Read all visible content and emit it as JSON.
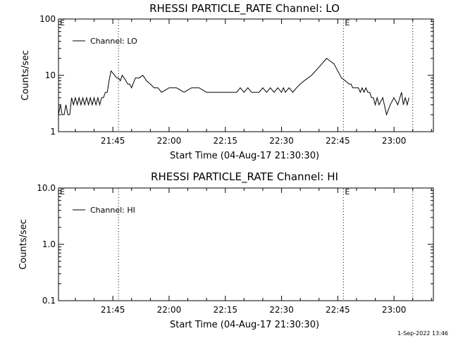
{
  "colors": {
    "background": "#ffffff",
    "foreground": "#000000"
  },
  "timestamp": "1-Sep-2022 13:46",
  "chart_data": [
    {
      "type": "line",
      "title": "RHESSI PARTICLE_RATE Channel: LO",
      "xlabel": "Start Time (04-Aug-17 21:30:30)",
      "ylabel": "Counts/sec",
      "y_scale": "log",
      "ylim": [
        1,
        100
      ],
      "y_ticks": [
        {
          "value": 1,
          "label": "1"
        },
        {
          "value": 10,
          "label": "10"
        },
        {
          "value": 100,
          "label": "100"
        }
      ],
      "xlim": [
        "21:30:30",
        "23:10:30"
      ],
      "x_ticks": [
        "21:45",
        "22:00",
        "22:15",
        "22:30",
        "22:45",
        "23:00"
      ],
      "eclipse_markers": [
        {
          "time": "21:46:30",
          "label": ""
        },
        {
          "time": "22:46:30",
          "label": "E"
        },
        {
          "time": "23:05:00",
          "label": ""
        }
      ],
      "corner_marks": [
        {
          "label": "E"
        }
      ],
      "legend": {
        "position": "top-left",
        "entries": [
          "Channel: LO"
        ]
      },
      "series": [
        {
          "name": "Channel: LO",
          "x": [
            "21:30:30",
            "21:31:00",
            "21:31:30",
            "21:32:00",
            "21:32:30",
            "21:33:00",
            "21:33:30",
            "21:34:00",
            "21:34:30",
            "21:35:00",
            "21:35:30",
            "21:36:00",
            "21:36:30",
            "21:37:00",
            "21:37:30",
            "21:38:00",
            "21:38:30",
            "21:39:00",
            "21:39:30",
            "21:40:00",
            "21:40:30",
            "21:41:00",
            "21:41:30",
            "21:42:00",
            "21:42:30",
            "21:43:00",
            "21:43:30",
            "21:44:00",
            "21:44:30",
            "21:45:00",
            "21:45:30",
            "21:46:00",
            "21:46:30",
            "21:47:00",
            "21:47:30",
            "21:48:00",
            "21:48:30",
            "21:49:00",
            "21:49:30",
            "21:50:00",
            "21:51:00",
            "21:52:00",
            "21:53:00",
            "21:54:00",
            "21:55:00",
            "21:56:00",
            "21:57:00",
            "21:58:00",
            "22:00:00",
            "22:02:00",
            "22:04:00",
            "22:06:00",
            "22:08:00",
            "22:10:00",
            "22:11:00",
            "22:12:00",
            "22:13:00",
            "22:14:00",
            "22:15:00",
            "22:16:00",
            "22:17:00",
            "22:18:00",
            "22:19:00",
            "22:20:00",
            "22:21:00",
            "22:22:00",
            "22:23:00",
            "22:24:00",
            "22:25:00",
            "22:26:00",
            "22:27:00",
            "22:28:00",
            "22:29:00",
            "22:30:00",
            "22:30:30",
            "22:31:00",
            "22:32:00",
            "22:33:00",
            "22:34:00",
            "22:35:00",
            "22:36:00",
            "22:38:00",
            "22:40:00",
            "22:42:00",
            "22:44:00",
            "22:45:00",
            "22:46:00",
            "22:47:00",
            "22:48:00",
            "22:48:30",
            "22:49:00",
            "22:49:30",
            "22:50:00",
            "22:50:30",
            "22:51:00",
            "22:51:30",
            "22:52:00",
            "22:52:30",
            "22:53:00",
            "22:53:30",
            "22:54:00",
            "22:54:30",
            "22:55:00",
            "22:55:30",
            "22:56:00",
            "22:57:00",
            "22:58:00",
            "22:59:00",
            "23:00:00",
            "23:01:00",
            "23:02:00",
            "23:02:30",
            "23:03:00",
            "23:03:30",
            "23:04:00"
          ],
          "y": [
            2,
            3,
            2,
            2,
            3,
            2,
            2,
            4,
            3,
            4,
            3,
            4,
            3,
            4,
            3,
            4,
            3,
            4,
            3,
            4,
            3,
            4,
            3,
            4,
            4,
            5,
            5,
            8,
            12,
            11,
            10,
            9,
            9,
            8,
            10,
            9,
            8,
            7,
            7,
            6,
            9,
            9,
            10,
            8,
            7,
            6,
            6,
            5,
            6,
            6,
            5,
            6,
            6,
            5,
            5,
            5,
            5,
            5,
            5,
            5,
            5,
            5,
            6,
            5,
            6,
            5,
            5,
            5,
            6,
            5,
            6,
            5,
            6,
            5,
            6,
            5,
            6,
            5,
            6,
            7,
            8,
            10,
            14,
            20,
            16,
            12,
            9,
            8,
            7,
            7,
            6,
            6,
            6,
            6,
            5,
            6,
            5,
            6,
            5,
            5,
            4,
            4,
            3,
            4,
            3,
            4,
            2,
            3,
            4,
            3,
            5,
            3,
            4,
            3,
            4
          ]
        }
      ]
    },
    {
      "type": "line",
      "title": "RHESSI PARTICLE_RATE Channel: HI",
      "xlabel": "Start Time (04-Aug-17 21:30:30)",
      "ylabel": "Counts/sec",
      "y_scale": "log",
      "ylim": [
        0.1,
        10
      ],
      "y_ticks": [
        {
          "value": 0.1,
          "label": "0.1"
        },
        {
          "value": 1,
          "label": "1.0"
        },
        {
          "value": 10,
          "label": "10.0"
        }
      ],
      "xlim": [
        "21:30:30",
        "23:10:30"
      ],
      "x_ticks": [
        "21:45",
        "22:00",
        "22:15",
        "22:30",
        "22:45",
        "23:00"
      ],
      "eclipse_markers": [
        {
          "time": "21:46:30",
          "label": ""
        },
        {
          "time": "22:46:30",
          "label": "E"
        },
        {
          "time": "23:05:00",
          "label": ""
        }
      ],
      "corner_marks": [
        {
          "label": "E"
        }
      ],
      "legend": {
        "position": "top-left",
        "entries": [
          "Channel: HI"
        ]
      },
      "series": [
        {
          "name": "Channel: HI",
          "x": [],
          "y": []
        }
      ]
    }
  ]
}
